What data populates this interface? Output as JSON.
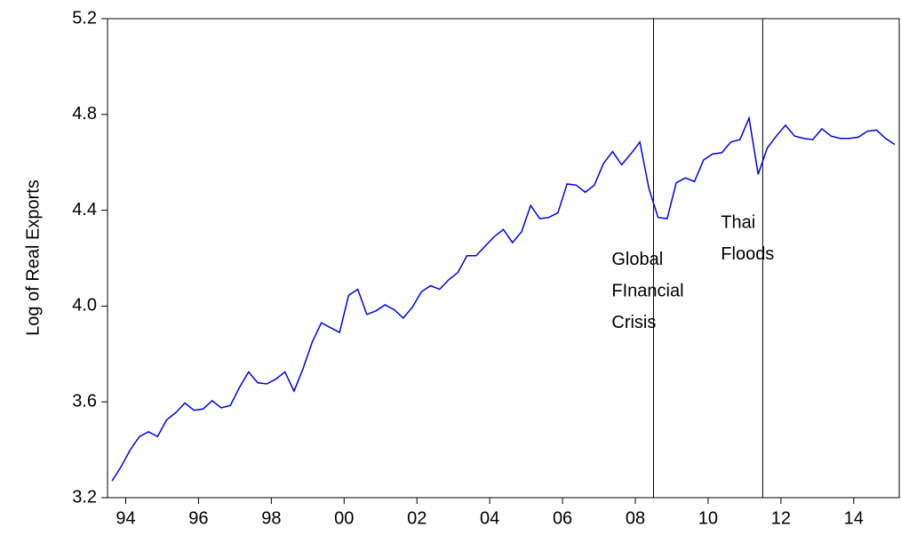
{
  "chart_data": {
    "type": "line",
    "y_label": "Log of Real Exports",
    "x": [
      1994.125,
      1994.375,
      1994.625,
      1994.875,
      1995.125,
      1995.375,
      1995.625,
      1995.875,
      1996.125,
      1996.375,
      1996.625,
      1996.875,
      1997.125,
      1997.375,
      1997.625,
      1997.875,
      1998.125,
      1998.375,
      1998.625,
      1998.875,
      1999.125,
      1999.375,
      1999.625,
      1999.875,
      2000.125,
      2000.375,
      2000.625,
      2000.875,
      2001.125,
      2001.375,
      2001.625,
      2001.875,
      2002.125,
      2002.375,
      2002.625,
      2002.875,
      2003.125,
      2003.375,
      2003.625,
      2003.875,
      2004.125,
      2004.375,
      2004.625,
      2004.875,
      2005.125,
      2005.375,
      2005.625,
      2005.875,
      2006.125,
      2006.375,
      2006.625,
      2006.875,
      2007.125,
      2007.375,
      2007.625,
      2007.875,
      2008.125,
      2008.375,
      2008.625,
      2008.875,
      2009.125,
      2009.375,
      2009.625,
      2009.875,
      2010.125,
      2010.375,
      2010.625,
      2010.875,
      2011.125,
      2011.375,
      2011.625,
      2011.875,
      2012.125,
      2012.375,
      2012.625,
      2012.875,
      2013.125,
      2013.375,
      2013.625,
      2013.875,
      2014.125,
      2014.375,
      2014.625,
      2014.875,
      2015.125,
      2015.375,
      2015.625
    ],
    "series": [
      {
        "name": "Log of Real Exports",
        "color": "#0000ee",
        "values": [
          3.27,
          3.33,
          3.4,
          3.455,
          3.475,
          3.455,
          3.525,
          3.555,
          3.595,
          3.565,
          3.57,
          3.605,
          3.575,
          3.585,
          3.66,
          3.725,
          3.68,
          3.675,
          3.695,
          3.725,
          3.645,
          3.74,
          3.85,
          3.93,
          3.91,
          3.89,
          4.045,
          4.07,
          3.965,
          3.98,
          4.005,
          3.985,
          3.95,
          3.995,
          4.06,
          4.085,
          4.07,
          4.11,
          4.14,
          4.21,
          4.21,
          4.25,
          4.29,
          4.32,
          4.265,
          4.31,
          4.42,
          4.365,
          4.37,
          4.39,
          4.51,
          4.505,
          4.475,
          4.505,
          4.595,
          4.645,
          4.59,
          4.635,
          4.685,
          4.49,
          4.37,
          4.365,
          4.515,
          4.535,
          4.52,
          4.61,
          4.635,
          4.64,
          4.685,
          4.695,
          4.785,
          4.55,
          4.66,
          4.71,
          4.755,
          4.71,
          4.7,
          4.695,
          4.74,
          4.71,
          4.7,
          4.7,
          4.705,
          4.73,
          4.735,
          4.7,
          4.675
        ]
      }
    ],
    "xlim": [
      1994,
      2015.75
    ],
    "xticks": [
      {
        "value": 1994.5,
        "label": "94"
      },
      {
        "value": 1996.5,
        "label": "96"
      },
      {
        "value": 1998.5,
        "label": "98"
      },
      {
        "value": 2000.5,
        "label": "00"
      },
      {
        "value": 2002.5,
        "label": "02"
      },
      {
        "value": 2004.5,
        "label": "04"
      },
      {
        "value": 2006.5,
        "label": "06"
      },
      {
        "value": 2008.5,
        "label": "08"
      },
      {
        "value": 2010.5,
        "label": "10"
      },
      {
        "value": 2012.5,
        "label": "12"
      },
      {
        "value": 2014.5,
        "label": "14"
      }
    ],
    "ylim": [
      3.2,
      5.2
    ],
    "yticks": [
      3.2,
      3.6,
      {
        "value": 4.0,
        "label": "4.0"
      },
      4.4,
      4.8,
      5.2
    ],
    "vlines": [
      2009,
      2012
    ],
    "annotations": [
      {
        "lines": [
          "Global",
          "FInancial",
          "Crisis"
        ],
        "x": 2008.9,
        "y": 4.06
      },
      {
        "lines": [
          "Thai",
          "Floods"
        ],
        "x": 2011.9,
        "y": 4.28
      }
    ]
  }
}
